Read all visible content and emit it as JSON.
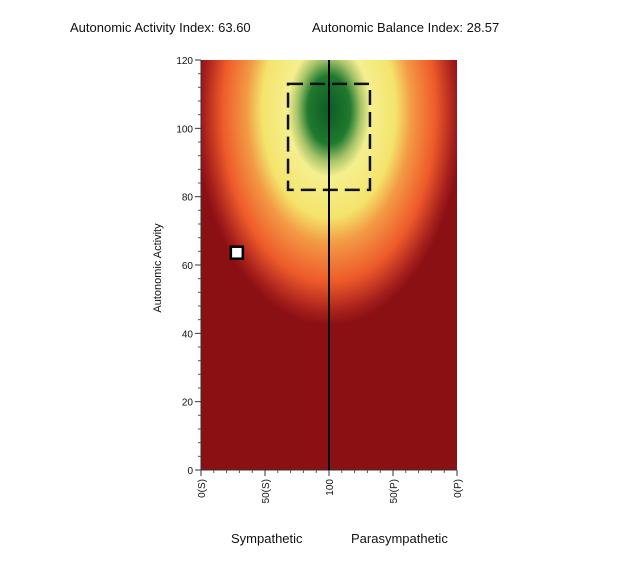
{
  "header": {
    "activity_index": "Autonomic Activity Index: 63.60",
    "balance_index": "Autonomic Balance Index: 28.57"
  },
  "footer": {
    "left_label": "Sympathetic",
    "right_label": "Parasympathetic"
  },
  "colors": {
    "outer": "#8b1014",
    "orange": "#f26a30",
    "yellow": "#f2ee8c",
    "green": "#0e5a24"
  },
  "chart_data": {
    "type": "heatmap",
    "title": "",
    "ylabel": "Autonomic Activity",
    "xlabel": "",
    "xlim": [
      0,
      100
    ],
    "ylim": [
      0,
      120
    ],
    "y_ticks": [
      0,
      20,
      40,
      60,
      80,
      100,
      120
    ],
    "x_ticks": [
      {
        "value": 0,
        "label": "0(S)"
      },
      {
        "value": 25,
        "label": "50(S)"
      },
      {
        "value": 50,
        "label": "100"
      },
      {
        "value": 75,
        "label": "50(P)"
      },
      {
        "value": 100,
        "label": "0(P)"
      }
    ],
    "center_line_x": 50,
    "normal_range": {
      "x": [
        34,
        66
      ],
      "y": [
        82,
        113
      ]
    },
    "marker": {
      "x": 14,
      "y": 63.6
    }
  }
}
